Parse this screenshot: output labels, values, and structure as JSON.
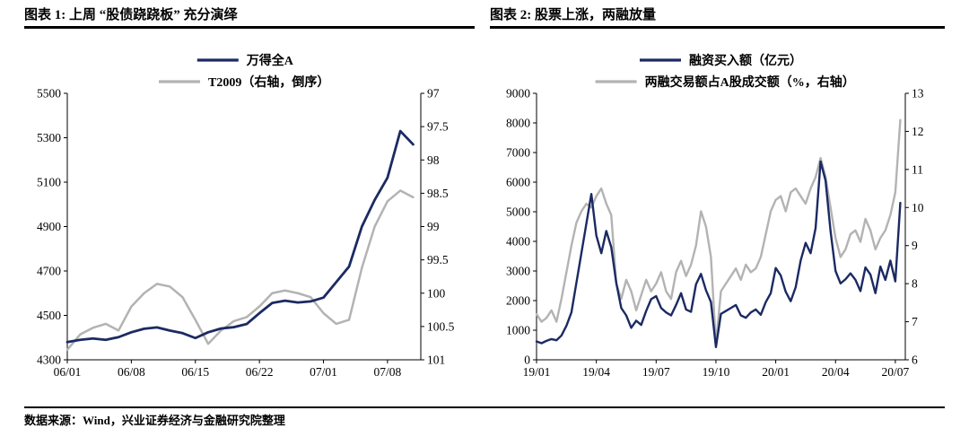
{
  "figures": [
    {
      "title": "图表 1:  上周 “股债跷跷板” 充分演绎"
    },
    {
      "title": "图表 2:  股票上涨，两融放量"
    }
  ],
  "footer": {
    "source_note": "数据来源：Wind，兴业证券经济与金融研究院整理"
  },
  "colors": {
    "navy": "#1b2a63",
    "gray": "#b3b3b3"
  },
  "chart_data": [
    {
      "type": "line",
      "name": "stock-bond-seesaw-chart",
      "title": "上周“股债跷跷板”充分演绎",
      "x_step": 1,
      "xdomain": [
        0,
        27.6
      ],
      "x_ticks": [
        {
          "pos": 0,
          "label": "06/01"
        },
        {
          "pos": 5,
          "label": "06/08"
        },
        {
          "pos": 10,
          "label": "06/15"
        },
        {
          "pos": 15,
          "label": "06/22"
        },
        {
          "pos": 20,
          "label": "07/01"
        },
        {
          "pos": 25,
          "label": "07/08"
        }
      ],
      "left_axis": {
        "min": 4300,
        "max": 5500,
        "ticks": [
          4300,
          4500,
          4700,
          4900,
          5100,
          5300,
          5500
        ],
        "reversed": false
      },
      "right_axis": {
        "min": 97,
        "max": 101,
        "ticks": [
          97,
          97.5,
          98,
          98.5,
          99,
          99.5,
          100,
          100.5,
          101
        ],
        "reversed": true,
        "note": "右轴，倒序"
      },
      "series": [
        {
          "name": "万得全A",
          "axis": "left_axis",
          "color": "navy",
          "width": 2.8,
          "values": [
            4380,
            4390,
            4396,
            4390,
            4402,
            4424,
            4440,
            4446,
            4432,
            4420,
            4398,
            4424,
            4441,
            4447,
            4461,
            4510,
            4556,
            4566,
            4558,
            4563,
            4580,
            4650,
            4720,
            4900,
            5020,
            5120,
            5330,
            5270
          ]
        },
        {
          "name": "T2009（右轴，倒序）",
          "axis": "right_axis",
          "color": "gray",
          "width": 2.5,
          "values": [
            100.85,
            100.62,
            100.52,
            100.46,
            100.56,
            100.2,
            100.0,
            99.86,
            99.9,
            100.06,
            100.4,
            100.76,
            100.56,
            100.42,
            100.36,
            100.2,
            100.0,
            99.96,
            100.0,
            100.06,
            100.3,
            100.46,
            100.4,
            99.62,
            99.0,
            98.62,
            98.46,
            98.56
          ]
        }
      ]
    },
    {
      "type": "line",
      "name": "margin-trading-chart",
      "title": "股票上涨，两融放量",
      "x_step": 0.25,
      "xdomain": [
        0,
        18.5
      ],
      "x_ticks": [
        {
          "pos": 0,
          "label": "19/01"
        },
        {
          "pos": 3,
          "label": "19/04"
        },
        {
          "pos": 6,
          "label": "19/07"
        },
        {
          "pos": 9,
          "label": "19/10"
        },
        {
          "pos": 12,
          "label": "20/01"
        },
        {
          "pos": 15,
          "label": "20/04"
        },
        {
          "pos": 18,
          "label": "20/07"
        }
      ],
      "left_axis": {
        "min": 0,
        "max": 9000,
        "ticks": [
          0,
          1000,
          2000,
          3000,
          4000,
          5000,
          6000,
          7000,
          8000,
          9000
        ],
        "reversed": false
      },
      "right_axis": {
        "min": 6,
        "max": 13,
        "ticks": [
          6,
          7,
          8,
          9,
          10,
          11,
          12,
          13
        ],
        "reversed": false,
        "note": "右轴"
      },
      "series": [
        {
          "name": "融资买入额（亿元）",
          "axis": "left_axis",
          "color": "navy",
          "width": 2.4,
          "values": [
            620,
            560,
            640,
            700,
            660,
            820,
            1150,
            1600,
            2600,
            3600,
            4600,
            5600,
            4200,
            3600,
            4350,
            3800,
            2600,
            1750,
            1500,
            1080,
            1320,
            1180,
            1650,
            2050,
            2150,
            1750,
            1600,
            1500,
            1850,
            2250,
            1700,
            1620,
            2550,
            2900,
            2350,
            1950,
            430,
            1550,
            1650,
            1750,
            1850,
            1500,
            1420,
            1600,
            1700,
            1520,
            1950,
            2250,
            3100,
            2850,
            2300,
            1980,
            2450,
            3350,
            3950,
            3600,
            4450,
            6700,
            6050,
            4350,
            3000,
            2580,
            2720,
            2920,
            2700,
            2320,
            3120,
            2880,
            2250,
            3150,
            2700,
            3350,
            2650,
            5300
          ]
        },
        {
          "name": "两融交易额占A股成交额（%，右轴）",
          "axis": "right_axis",
          "color": "gray",
          "width": 2.4,
          "values": [
            7.2,
            7.0,
            7.1,
            7.3,
            7.0,
            7.6,
            8.3,
            9.0,
            9.6,
            9.9,
            10.1,
            10.0,
            10.3,
            10.5,
            10.1,
            9.8,
            8.0,
            7.6,
            8.1,
            7.8,
            7.3,
            7.7,
            8.1,
            7.8,
            8.0,
            8.3,
            7.8,
            7.6,
            8.3,
            8.6,
            8.2,
            8.5,
            9.0,
            9.9,
            9.5,
            8.7,
            6.4,
            7.8,
            8.0,
            8.2,
            8.4,
            8.1,
            8.5,
            8.3,
            8.4,
            8.7,
            9.3,
            9.9,
            10.2,
            10.3,
            9.9,
            10.4,
            10.5,
            10.3,
            10.1,
            10.5,
            10.8,
            11.3,
            10.8,
            10.0,
            9.2,
            8.7,
            8.9,
            9.3,
            9.4,
            9.1,
            9.7,
            9.4,
            8.9,
            9.2,
            9.4,
            9.8,
            10.4,
            12.3
          ]
        }
      ]
    }
  ]
}
